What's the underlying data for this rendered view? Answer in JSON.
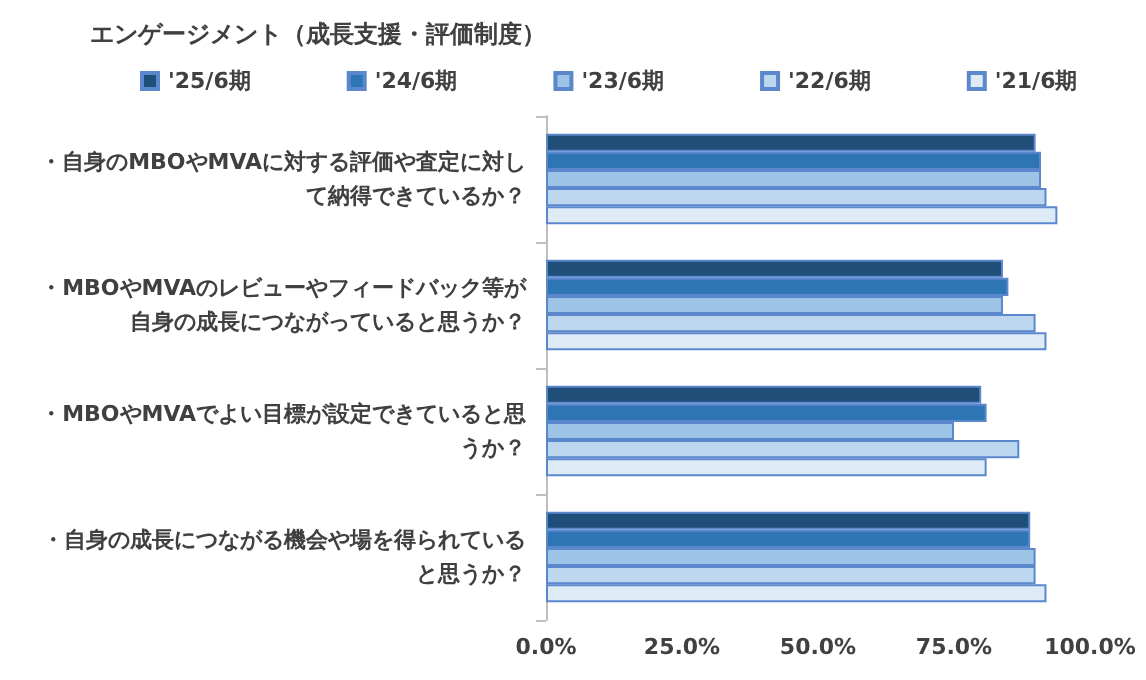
{
  "chart_data": {
    "type": "bar",
    "orientation": "horizontal",
    "title": "エンゲージメント（成長支援・評価制度）",
    "categories": [
      "・自身のMBOやMVAに対する評価や査定に対して納得できているか？",
      "・MBOやMVAのレビューやフィードバック等が自身の成長につながっていると思うか？",
      "・MBOやMVAでよい目標が設定できていると思うか？",
      "・自身の成長につながる機会や場を得られていると思うか？"
    ],
    "series": [
      {
        "name": "'25/6期",
        "color": "#1f4e79",
        "values": [
          90,
          84,
          80,
          89
        ]
      },
      {
        "name": "'24/6期",
        "color": "#2e75b6",
        "values": [
          91,
          85,
          81,
          89
        ]
      },
      {
        "name": "'23/6期",
        "color": "#9dc3e6",
        "values": [
          91,
          84,
          75,
          90
        ]
      },
      {
        "name": "'22/6期",
        "color": "#bdd7ee",
        "values": [
          92,
          90,
          87,
          90
        ]
      },
      {
        "name": "'21/6期",
        "color": "#deebf7",
        "values": [
          94,
          92,
          81,
          92
        ]
      }
    ],
    "xlim": [
      0,
      100
    ],
    "xticks": [
      {
        "value": 0,
        "label": "0.0%"
      },
      {
        "value": 25,
        "label": "25.0%"
      },
      {
        "value": 50,
        "label": "50.0%"
      },
      {
        "value": 75,
        "label": "75.0%"
      },
      {
        "value": 100,
        "label": "100.0%"
      }
    ],
    "grid": false,
    "legend": "top"
  }
}
